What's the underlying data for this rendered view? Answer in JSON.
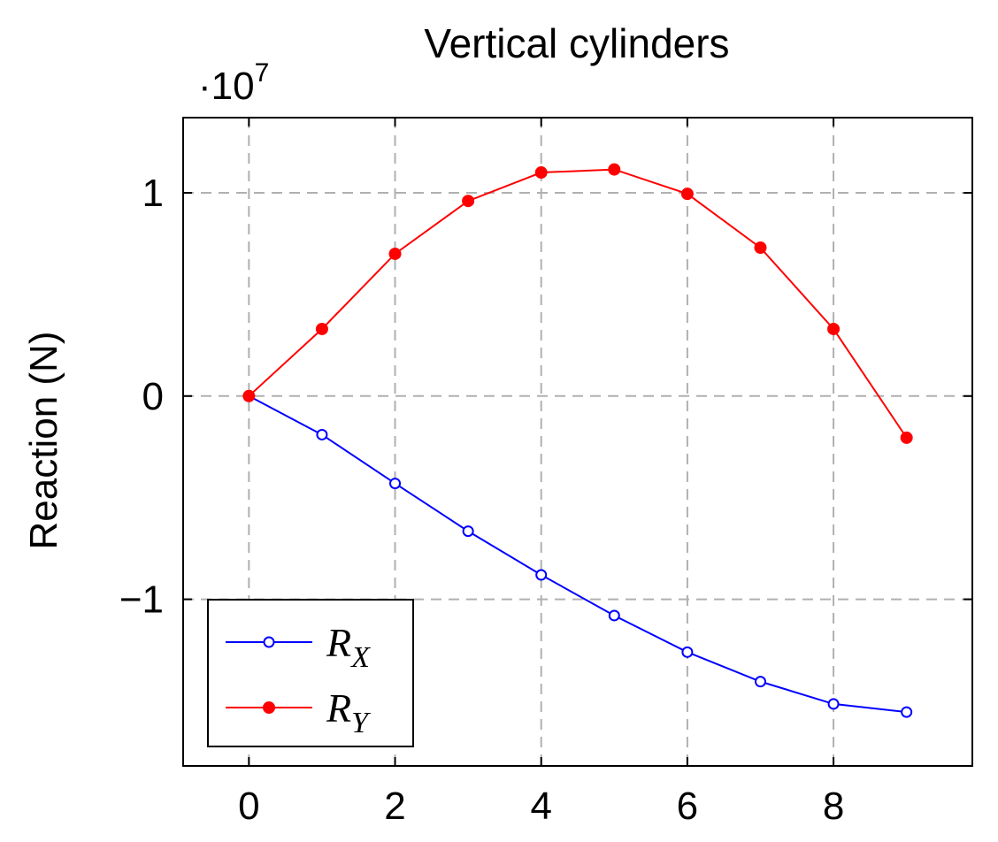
{
  "chart_data": {
    "type": "line",
    "title": "Vertical cylinders",
    "xlabel": "",
    "ylabel": "Reaction (N)",
    "y_multiplier_base": "·10",
    "y_multiplier_exponent": "7",
    "xlim": [
      -0.9,
      9.9
    ],
    "ylim": [
      -1.82,
      1.37
    ],
    "x_ticks": [
      0,
      2,
      4,
      6,
      8
    ],
    "x_tick_labels": [
      "0",
      "2",
      "4",
      "6",
      "8"
    ],
    "y_ticks": [
      -1,
      0,
      1
    ],
    "y_tick_labels": [
      "−1",
      "0",
      "1"
    ],
    "grid": true,
    "legend_position": "bottom-left",
    "series": [
      {
        "name": "R",
        "subscript": "X",
        "color": "#0000ff",
        "marker": "open-circle",
        "x": [
          0,
          1,
          2,
          3,
          4,
          5,
          6,
          7,
          8,
          9
        ],
        "y": [
          0,
          -0.19,
          -0.43,
          -0.665,
          -0.88,
          -1.08,
          -1.26,
          -1.405,
          -1.515,
          -1.555
        ]
      },
      {
        "name": "R",
        "subscript": "Y",
        "color": "#ff0000",
        "marker": "filled-circle",
        "x": [
          0,
          1,
          2,
          3,
          4,
          5,
          6,
          7,
          8,
          9
        ],
        "y": [
          0,
          0.33,
          0.7,
          0.96,
          1.1,
          1.115,
          0.995,
          0.73,
          0.33,
          -0.205
        ]
      }
    ]
  }
}
